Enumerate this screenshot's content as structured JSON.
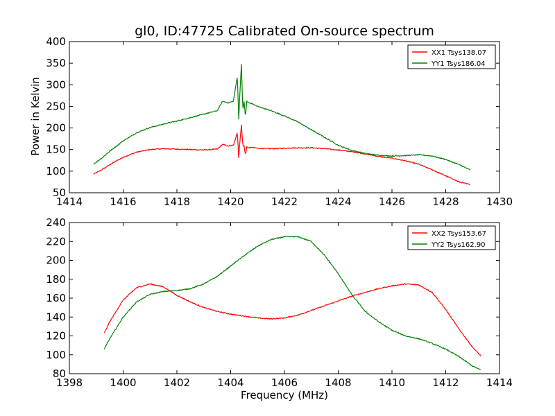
{
  "figure": {
    "title": "gl0, ID:47725 Calibrated On-source spectrum",
    "xlabel": "Frequency (MHz)",
    "ylabel": "Power in Kelvin"
  },
  "chart_data": [
    {
      "type": "line",
      "title": "gl0, ID:47725 Calibrated On-source spectrum",
      "xlabel": "",
      "ylabel": "Power in Kelvin",
      "xlim": [
        1414,
        1430
      ],
      "ylim": [
        50,
        400
      ],
      "xticks": [
        1414,
        1416,
        1418,
        1420,
        1422,
        1424,
        1426,
        1428,
        1430
      ],
      "yticks": [
        50,
        100,
        150,
        200,
        250,
        300,
        350,
        400
      ],
      "legend_position": "top-right",
      "grid": false,
      "series": [
        {
          "name": "XX1 Tsys138.07",
          "color": "#ff0000",
          "x": [
            1414.9,
            1415.2,
            1415.5,
            1416.0,
            1416.5,
            1417.0,
            1417.5,
            1418.0,
            1418.5,
            1419.0,
            1419.5,
            1419.7,
            1419.9,
            1420.1,
            1420.25,
            1420.3,
            1420.35,
            1420.4,
            1420.45,
            1420.5,
            1420.55,
            1420.6,
            1420.65,
            1420.8,
            1421.0,
            1421.5,
            1422.0,
            1422.5,
            1423.0,
            1423.5,
            1424.0,
            1424.5,
            1425.0,
            1425.5,
            1426.0,
            1426.5,
            1427.0,
            1427.5,
            1428.0,
            1428.5,
            1428.9
          ],
          "y": [
            93,
            103,
            115,
            132,
            144,
            150,
            152,
            151,
            150,
            149,
            151,
            162,
            158,
            160,
            190,
            130,
            175,
            207,
            160,
            158,
            137,
            157,
            154,
            155,
            153,
            152,
            153,
            154,
            154,
            152,
            149,
            145,
            140,
            134,
            130,
            124,
            116,
            103,
            89,
            75,
            69
          ]
        },
        {
          "name": "YY1 Tsys186.04",
          "color": "#008000",
          "x": [
            1414.9,
            1415.2,
            1415.5,
            1416.0,
            1416.5,
            1417.0,
            1417.5,
            1418.0,
            1418.5,
            1419.0,
            1419.5,
            1419.7,
            1419.9,
            1420.1,
            1420.25,
            1420.3,
            1420.35,
            1420.4,
            1420.45,
            1420.5,
            1420.55,
            1420.6,
            1420.65,
            1420.8,
            1421.0,
            1421.5,
            1422.0,
            1422.5,
            1423.0,
            1423.5,
            1424.0,
            1424.5,
            1425.0,
            1425.5,
            1426.0,
            1426.5,
            1427.0,
            1427.5,
            1428.0,
            1428.5,
            1428.9
          ],
          "y": [
            116,
            130,
            146,
            170,
            189,
            201,
            209,
            216,
            224,
            232,
            240,
            262,
            258,
            262,
            320,
            220,
            290,
            349,
            240,
            262,
            224,
            262,
            259,
            256,
            250,
            240,
            228,
            214,
            196,
            178,
            160,
            148,
            141,
            137,
            135,
            136,
            138,
            135,
            127,
            115,
            103
          ]
        }
      ]
    },
    {
      "type": "line",
      "title": "",
      "xlabel": "Frequency (MHz)",
      "ylabel": "",
      "xlim": [
        1398,
        1414
      ],
      "ylim": [
        80,
        240
      ],
      "xticks": [
        1398,
        1400,
        1402,
        1404,
        1406,
        1408,
        1410,
        1412,
        1414
      ],
      "yticks": [
        80,
        100,
        120,
        140,
        160,
        180,
        200,
        220,
        240
      ],
      "legend_position": "top-right",
      "grid": false,
      "series": [
        {
          "name": "XX2 Tsys153.67",
          "color": "#ff0000",
          "x": [
            1399.3,
            1399.5,
            1400.0,
            1400.5,
            1401.0,
            1401.5,
            1402.0,
            1402.5,
            1403.0,
            1403.5,
            1404.0,
            1404.5,
            1405.0,
            1405.5,
            1406.0,
            1406.5,
            1407.0,
            1407.5,
            1408.0,
            1408.5,
            1409.0,
            1409.5,
            1410.0,
            1410.5,
            1411.0,
            1411.5,
            1412.0,
            1412.5,
            1413.0,
            1413.3
          ],
          "y": [
            123,
            135,
            158,
            171,
            175,
            172,
            163,
            156,
            150,
            146,
            143,
            141,
            139,
            138,
            139,
            142,
            147,
            152,
            157,
            162,
            166,
            170,
            173,
            175,
            174,
            166,
            148,
            127,
            108,
            99
          ]
        },
        {
          "name": "YY2 Tsys162.90",
          "color": "#008000",
          "x": [
            1399.3,
            1399.5,
            1400.0,
            1400.5,
            1401.0,
            1401.5,
            1402.0,
            1402.5,
            1403.0,
            1403.5,
            1404.0,
            1404.5,
            1405.0,
            1405.5,
            1406.0,
            1406.5,
            1407.0,
            1407.5,
            1408.0,
            1408.5,
            1409.0,
            1409.5,
            1410.0,
            1410.5,
            1411.0,
            1411.5,
            1412.0,
            1412.5,
            1413.0,
            1413.3
          ],
          "y": [
            106,
            117,
            140,
            156,
            164,
            167,
            168,
            170,
            175,
            183,
            194,
            205,
            215,
            222,
            225,
            225,
            220,
            205,
            186,
            164,
            146,
            135,
            126,
            120,
            117,
            112,
            106,
            98,
            88,
            84
          ]
        }
      ]
    }
  ]
}
